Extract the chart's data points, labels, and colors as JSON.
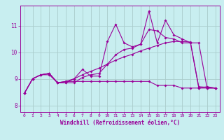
{
  "xlabel": "Windchill (Refroidissement éolien,°C)",
  "background_color": "#c8eef0",
  "line_color": "#990099",
  "grid_color": "#aacccc",
  "xlim": [
    -0.5,
    23.5
  ],
  "ylim": [
    7.75,
    11.75
  ],
  "xticks": [
    0,
    1,
    2,
    3,
    4,
    5,
    6,
    7,
    8,
    9,
    10,
    11,
    12,
    13,
    14,
    15,
    16,
    17,
    18,
    19,
    20,
    21,
    22,
    23
  ],
  "yticks": [
    8,
    9,
    10,
    11
  ],
  "hours": [
    0,
    1,
    2,
    3,
    4,
    5,
    6,
    7,
    8,
    9,
    10,
    11,
    12,
    13,
    14,
    15,
    16,
    17,
    18,
    19,
    20,
    21,
    22,
    23
  ],
  "line1": [
    8.45,
    9.0,
    9.15,
    9.15,
    8.85,
    8.85,
    9.0,
    9.35,
    9.1,
    9.1,
    10.4,
    11.05,
    10.35,
    10.2,
    10.3,
    11.55,
    10.35,
    11.2,
    10.65,
    10.5,
    10.35,
    8.65,
    8.7,
    8.65
  ],
  "line2": [
    8.45,
    9.0,
    9.15,
    9.2,
    8.85,
    8.85,
    8.85,
    9.05,
    9.15,
    9.2,
    9.55,
    9.9,
    10.1,
    10.15,
    10.3,
    10.85,
    10.8,
    10.55,
    10.5,
    10.35,
    10.35,
    10.35,
    8.65,
    8.65
  ],
  "line3": [
    8.45,
    9.0,
    9.15,
    9.2,
    8.85,
    8.9,
    9.0,
    9.15,
    9.28,
    9.4,
    9.55,
    9.7,
    9.82,
    9.92,
    10.05,
    10.15,
    10.25,
    10.35,
    10.4,
    10.4,
    10.38,
    8.7,
    8.68,
    8.65
  ],
  "line4": [
    8.45,
    9.0,
    9.15,
    9.2,
    8.85,
    8.9,
    8.9,
    8.9,
    8.9,
    8.9,
    8.9,
    8.9,
    8.9,
    8.9,
    8.9,
    8.9,
    8.75,
    8.75,
    8.75,
    8.65,
    8.65,
    8.65,
    8.65,
    8.65
  ]
}
